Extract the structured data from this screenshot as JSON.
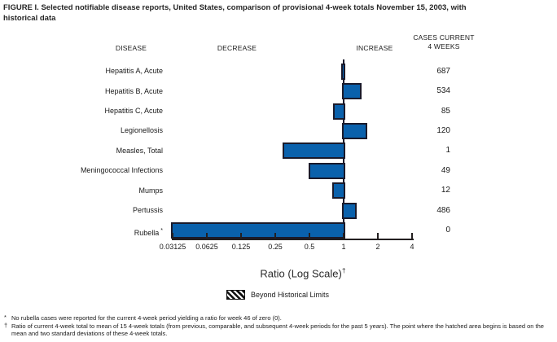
{
  "title_lines": [
    "FIGURE I. Selected notifiable disease reports, United States, comparison of provisional 4-week totals November 15, 2003, with",
    "historical data"
  ],
  "columns": {
    "disease": "DISEASE",
    "decrease": "DECREASE",
    "increase": "INCREASE",
    "cases_line1": "CASES CURRENT",
    "cases_line2": "4 WEEKS"
  },
  "chart_data": {
    "type": "bar",
    "orientation": "horizontal",
    "scale": "log2",
    "xlim": [
      0.03125,
      4
    ],
    "x_ticks": [
      "0.03125",
      "0.0625",
      "0.125",
      "0.25",
      "0.5",
      "1",
      "2",
      "4"
    ],
    "xlabel": "Ratio (Log Scale)",
    "xlabel_sup": "†",
    "center_reference": 1,
    "rows": [
      {
        "disease": "Hepatitis A, Acute",
        "ratio": 0.99,
        "cases": "687"
      },
      {
        "disease": "Hepatitis B, Acute",
        "ratio": 1.4,
        "cases": "534"
      },
      {
        "disease": "Hepatitis C, Acute",
        "ratio": 0.84,
        "cases": "85"
      },
      {
        "disease": "Legionellosis",
        "ratio": 1.55,
        "cases": "120"
      },
      {
        "disease": "Measles, Total",
        "ratio": 0.3,
        "cases": "1"
      },
      {
        "disease": "Meningococcal Infections",
        "ratio": 0.51,
        "cases": "49"
      },
      {
        "disease": "Mumps",
        "ratio": 0.82,
        "cases": "12"
      },
      {
        "disease": "Pertussis",
        "ratio": 1.25,
        "cases": "486"
      },
      {
        "disease": "Rubella",
        "footnote_marker": "*",
        "ratio": 0,
        "cases": "0"
      }
    ],
    "legend": {
      "label": "Beyond Historical Limits",
      "style": "hatched"
    },
    "colors": {
      "bar_fill": "#0A61AC",
      "bar_border": "#1A1A2B",
      "axis": "#231F20"
    }
  },
  "footnotes": [
    {
      "marker": "*",
      "text": "No rubella cases were reported for the current 4-week period yielding a ratio for week 46 of zero (0)."
    },
    {
      "marker": "†",
      "text": "Ratio of current 4-week total to mean of 15 4-week totals (from previous, comparable, and subsequent 4-week periods for the past 5 years). The point where the hatched area begins is based on the mean and two standard deviations of these 4-week totals."
    }
  ]
}
